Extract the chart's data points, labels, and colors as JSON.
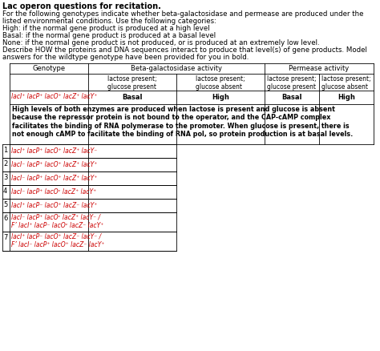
{
  "title": "Lac operon questions for recitation.",
  "intro_lines": [
    "For the following genotypes indicate whether beta-galactosidase and permease are produced under the",
    "listed environmental conditions. Use the following categories:",
    "High: if the normal gene product is produced at a high level",
    "Basal: if the normal gene product is produced at a basal level",
    "None: if the normal gene product is not produced, or is produced at an extremely low level.",
    "Describe HOW the proteins and DNA sequences interact to produce that level(s) of gene products. Model",
    "answers for the wildtype genotype have been provided for you in bold."
  ],
  "wildtype_genotype": "lacI⁺ lacP⁺ lacO⁺ lacZ⁺ lacY⁺",
  "wildtype_answers": [
    "Basal",
    "High",
    "Basal",
    "High"
  ],
  "wildtype_explanation": "High levels of both enzymes are produced when lactose is present and glucose is absent\nbecause the repressor protein is not bound to the operator, and the CAP-cAMP complex\nfacilitates the binding of RNA polymerase to the promoter. When glucose is present, there is\nnot enough cAMP to facilitate the binding of RNA pol, so protein production is at basal levels.",
  "rows": [
    {
      "num": "1",
      "line1": "lacI⁺ lacP⁺ lacO⁺ lacZ⁺ lacY⁻",
      "line2": null
    },
    {
      "num": "2",
      "line1": "lacI⁻ lacP⁺ lacO⁺ lacZ⁺ lacY⁺",
      "line2": null
    },
    {
      "num": "3",
      "line1": "lacI⁻ lacP⁺ lacO⁺ lacZ⁺ lacY⁺",
      "line2": null
    },
    {
      "num": "4",
      "line1": "lacI⁻ lacP⁺ lacOᶜ lacZ⁺ lacY⁺",
      "line2": null
    },
    {
      "num": "5",
      "line1": "lacI⁺ lacP⁻ lacO⁺ lacZ⁻ lacY⁺",
      "line2": null
    },
    {
      "num": "6",
      "line1": "lacI⁻ lacP⁺ lacOᶜ lacZ⁺ lacY⁻ /",
      "line2": "F’ lacI⁺ lacP⁻ lacOᶜ lacZ⁻ lacY⁺"
    },
    {
      "num": "7",
      "line1": "lacI⁺ lacP⁻ lacO⁺ lacZ⁻ lacY⁻ /",
      "line2": "F’ lacI⁻ lacP⁺ lacO⁺ lacZ⁻ lacY⁺"
    }
  ],
  "bg_color": "#ffffff",
  "text_color": "#000000",
  "red_color": "#cc0000",
  "title_fontsize": 7.0,
  "body_fontsize": 6.2,
  "table_fontsize": 6.0,
  "small_fontsize": 5.5
}
